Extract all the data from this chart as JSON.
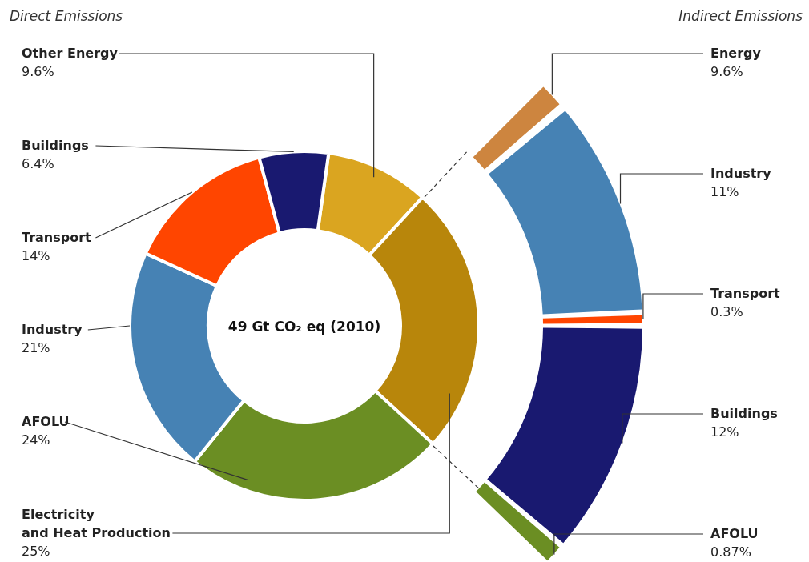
{
  "chart_data": [
    {
      "type": "donut",
      "title": "Direct Emissions",
      "categories": [
        "Other Energy",
        "Electricity and Heat Production",
        "AFOLU",
        "Industry",
        "Transport",
        "Buildings"
      ],
      "values": [
        9.6,
        25,
        24,
        21,
        14,
        6.4
      ],
      "value_labels": [
        "9.6%",
        "25%",
        "24%",
        "21%",
        "14%",
        "6.4%"
      ],
      "colors": [
        "#daa520",
        "#b8860b",
        "#6b8e23",
        "#4682b4",
        "#ff4500",
        "#191970"
      ],
      "annotations": [
        "49 Gt CO₂ eq (2010)"
      ]
    },
    {
      "type": "other",
      "title": "Indirect Emissions",
      "categories": [
        "Energy",
        "Industry",
        "Transport",
        "Buildings",
        "AFOLU"
      ],
      "value_labels": [
        "9.6%",
        "11%",
        "0.3%",
        "12%",
        "0.87%"
      ],
      "colors": [
        "#cd853f",
        "#4682b4",
        "#ff4500",
        "#191970",
        "#6b8e23"
      ]
    }
  ]
}
